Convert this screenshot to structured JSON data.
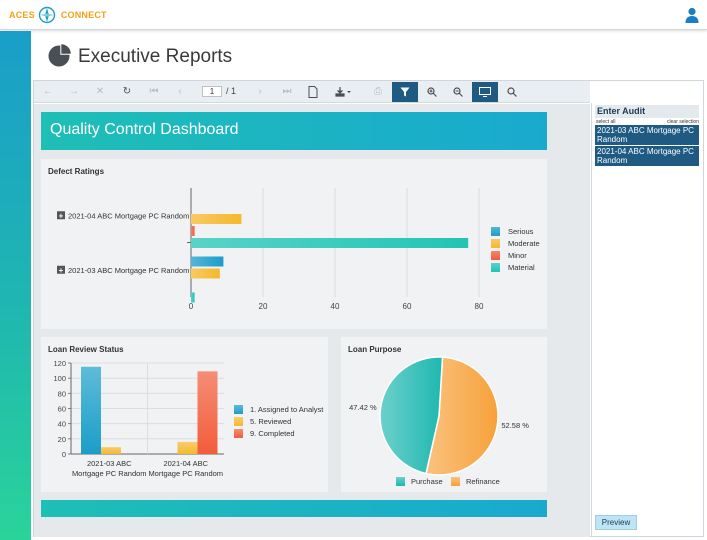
{
  "header": {
    "brand_left": "ACES",
    "brand_right": "CONNECT",
    "user_icon": "user-icon"
  },
  "page": {
    "title": "Executive Reports",
    "title_icon": "pie-chart-icon"
  },
  "toolbar": {
    "page_current": "1",
    "page_total": "/ 1",
    "icons": [
      "back-icon",
      "forward-icon",
      "stop-icon",
      "refresh-icon",
      "first-page-icon",
      "prev-page-icon",
      "next-page-icon",
      "last-page-icon",
      "document-map-icon",
      "export-icon",
      "print-icon",
      "parameters-icon",
      "zoom-in-icon",
      "zoom-out-icon",
      "toggle-view-icon",
      "search-icon"
    ]
  },
  "dashboard": {
    "title": "Quality Control Dashboard"
  },
  "params": {
    "title": "Enter Audit",
    "select_all": "select all",
    "clear_selection": "clear selection",
    "options": [
      "2021-03 ABC Mortgage PC Random",
      "2021-04 ABC Mortgage PC Random"
    ],
    "preview": "Preview"
  },
  "chart_data": [
    {
      "type": "bar",
      "orientation": "horizontal",
      "title": "Defect Ratings",
      "categories": [
        "2021-04 ABC Mortgage PC Random",
        "2021-03 ABC Mortgage PC Random"
      ],
      "series": [
        {
          "name": "Serious",
          "color": "#1a9ec9",
          "values": [
            0,
            9
          ]
        },
        {
          "name": "Moderate",
          "color": "#f5b82e",
          "values": [
            14,
            8
          ]
        },
        {
          "name": "Minor",
          "color": "#f25c3a",
          "values": [
            1,
            0
          ]
        },
        {
          "name": "Material",
          "color": "#22c4b4",
          "values": [
            77,
            1
          ]
        }
      ],
      "xlim": [
        0,
        80
      ],
      "xticks": [
        "0",
        "20",
        "40",
        "60",
        "80"
      ],
      "grid": true,
      "legend": "right"
    },
    {
      "type": "bar",
      "title": "Loan Review Status",
      "categories": [
        "2021-03 ABC Mortgage PC Random",
        "2021-04 ABC Mortgage PC Random"
      ],
      "category_lines": [
        [
          "2021-03 ABC",
          "Mortgage PC Random"
        ],
        [
          "2021-04 ABC",
          "Mortgage PC Random"
        ]
      ],
      "series": [
        {
          "name": "1. Assigned to Analyst",
          "color": "#1a9ec9",
          "values": [
            115,
            0
          ]
        },
        {
          "name": "5. Reviewed",
          "color": "#f5b82e",
          "values": [
            9,
            16
          ]
        },
        {
          "name": "9. Completed",
          "color": "#f25c3a",
          "values": [
            0,
            109
          ]
        }
      ],
      "ylim": [
        0,
        120
      ],
      "yticks": [
        "0",
        "20",
        "40",
        "60",
        "80",
        "100",
        "120"
      ],
      "grid": true,
      "legend": "right"
    },
    {
      "type": "pie",
      "title": "Loan Purpose",
      "slices": [
        {
          "name": "Purchase",
          "color": "#1fb7b0",
          "value": 47.42,
          "label": "47.42 %"
        },
        {
          "name": "Refinance",
          "color": "#f7a13a",
          "value": 52.58,
          "label": "52.58 %"
        }
      ],
      "legend": "bottom"
    }
  ]
}
